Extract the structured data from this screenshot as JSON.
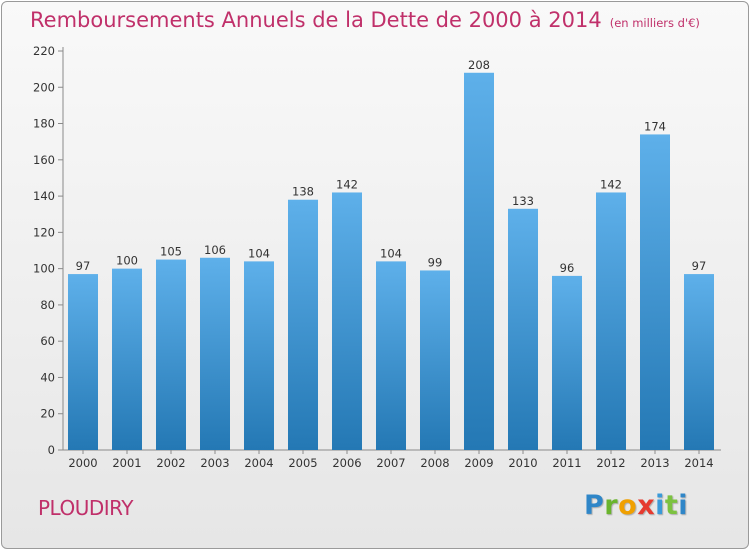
{
  "title": "Remboursements Annuels de la Dette de 2000 à 2014",
  "unit": "(en milliers d'€)",
  "place": "PLOUDIRY",
  "logo_text": "Proxiti",
  "logo_colors": [
    "#2f86c8",
    "#6ab42d",
    "#f0a000",
    "#e63a2f",
    "#3a9ad9",
    "#7cc240",
    "#2f86c8"
  ],
  "colors": {
    "title": "#c0306a",
    "bar_top": "#5eb0ea",
    "bar_bottom": "#2478b4"
  },
  "chart_data": {
    "type": "bar",
    "categories": [
      "2000",
      "2001",
      "2002",
      "2003",
      "2004",
      "2005",
      "2006",
      "2007",
      "2008",
      "2009",
      "2010",
      "2011",
      "2012",
      "2013",
      "2014"
    ],
    "values": [
      97,
      100,
      105,
      106,
      104,
      138,
      142,
      104,
      99,
      208,
      133,
      96,
      142,
      174,
      97
    ],
    "ylim": [
      0,
      220
    ],
    "yticks": [
      0,
      20,
      40,
      60,
      80,
      100,
      120,
      140,
      160,
      180,
      200,
      220
    ],
    "grid": false,
    "data_labels": true
  }
}
